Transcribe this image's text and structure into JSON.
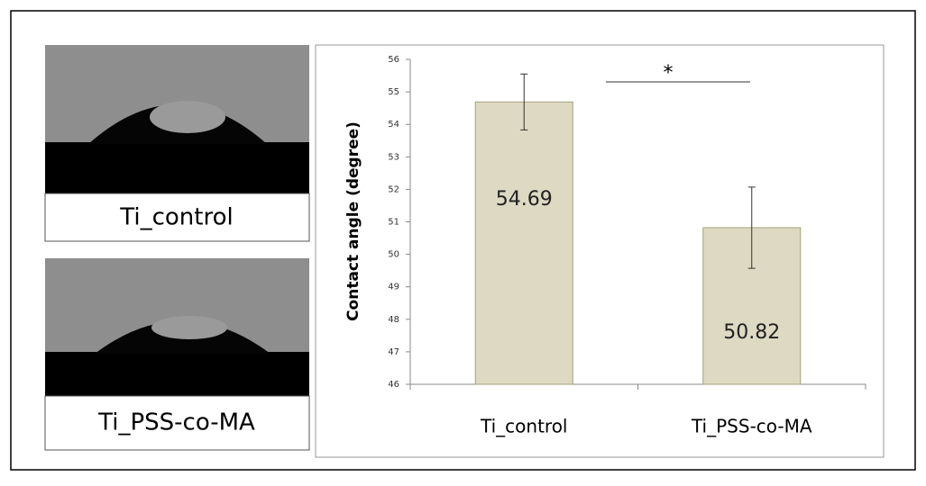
{
  "panels": [
    {
      "caption": "Ti_control"
    },
    {
      "caption": "Ti_PSS-co-MA"
    }
  ],
  "chart_data": {
    "type": "bar",
    "ylabel": "Contact angle (degree)",
    "categories": [
      "Ti_control",
      "Ti_PSS-co-MA"
    ],
    "values": [
      54.69,
      50.82
    ],
    "errors": [
      0.86,
      1.25
    ],
    "color": "#ddd9c3",
    "ylim": [
      46,
      56
    ],
    "yticks": [
      46,
      47,
      48,
      49,
      50,
      51,
      52,
      53,
      54,
      55,
      56
    ],
    "annotation": "*"
  }
}
